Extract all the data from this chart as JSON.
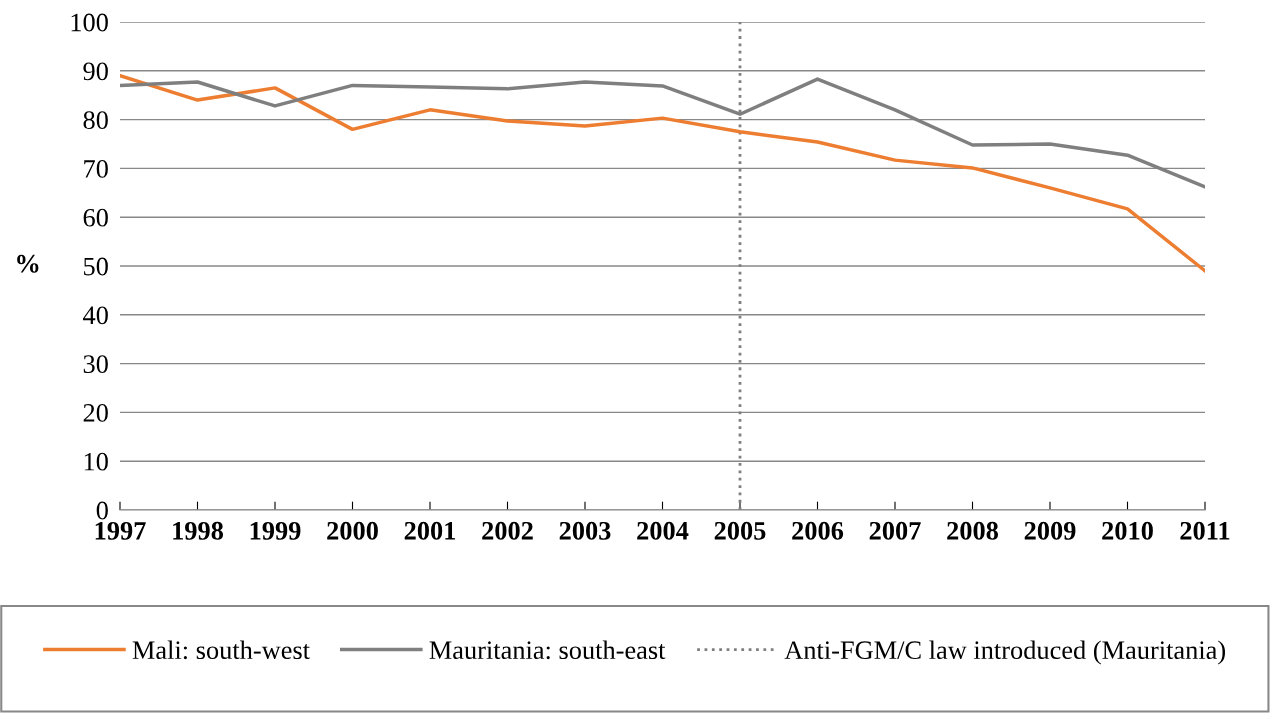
{
  "chart_data": {
    "type": "line",
    "ylabel": "%",
    "categories": [
      "1997",
      "1998",
      "1999",
      "2000",
      "2001",
      "2002",
      "2003",
      "2004",
      "2005",
      "2006",
      "2007",
      "2008",
      "2009",
      "2010",
      "2011"
    ],
    "series": [
      {
        "name": "Mali: south-west",
        "color": "#ed7d31",
        "values": [
          89,
          84,
          86.5,
          78,
          82,
          79.7,
          78.7,
          80.3,
          77.5,
          75.4,
          71.7,
          70.1,
          66,
          61.7,
          49
        ]
      },
      {
        "name": "Mauritania: south-east",
        "color": "#7f7f7f",
        "values": [
          87,
          87.7,
          82.8,
          87,
          86.7,
          86.3,
          87.7,
          86.9,
          81.1,
          88.3,
          82,
          74.8,
          75,
          72.7,
          66.2
        ]
      }
    ],
    "ylim": [
      0,
      100
    ],
    "yticks": [
      0,
      10,
      20,
      30,
      40,
      50,
      60,
      70,
      80,
      90,
      100
    ],
    "ref_lines": [
      {
        "axis": "x",
        "value": "2005",
        "label": "Anti-FGM/C law introduced (Mauritania)",
        "color": "#7f7f7f",
        "line_style": "dotted"
      }
    ],
    "grid": "y",
    "legend": "bottom",
    "marker": "none",
    "line_style": "solid"
  }
}
